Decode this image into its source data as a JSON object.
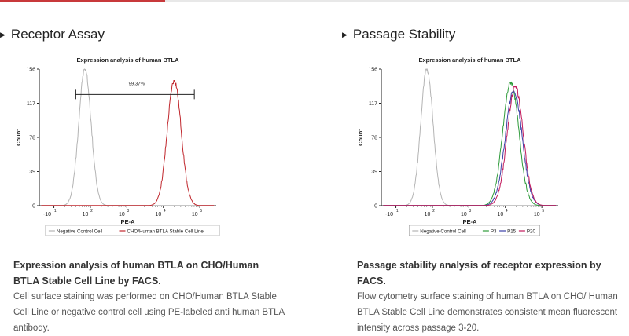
{
  "sections": [
    {
      "heading": "Receptor Assay",
      "description_title": "Expression analysis of human BTLA on CHO/Human BTLA Stable Cell Line by FACS.",
      "description_body": "Cell surface staining was performed on CHO/Human BTLA Stable Cell Line or negative control cell using PE-labeled anti human BTLA antibody."
    },
    {
      "heading": "Passage Stability",
      "description_title": "Passage stability analysis of receptor expression by FACS.",
      "description_body": "Flow cytometry surface staining of human BTLA on CHO/ Human BTLA Stable Cell Line demonstrates consistent mean fluorescent intensity across passage 3-20."
    }
  ],
  "chart_data": [
    {
      "type": "line",
      "title": "Expression analysis of human BTLA",
      "xlabel": "PE-A",
      "ylabel": "Count",
      "xscale": "log",
      "ylim": [
        0,
        156
      ],
      "yticks": [
        0,
        39,
        78,
        117,
        156
      ],
      "xticks": [
        {
          "base": "-10",
          "exp": "1"
        },
        {
          "base": "10",
          "exp": "2"
        },
        {
          "base": "10",
          "exp": "3"
        },
        {
          "base": "10",
          "exp": "4"
        },
        {
          "base": "10",
          "exp": "5"
        }
      ],
      "annotation": {
        "label": "99.37%",
        "gate_from_decade": 1.6,
        "gate_to_decade": 4.85,
        "gate_y": 127
      },
      "series": [
        {
          "name": "Negative Control Cell",
          "color": "#b4b4b4",
          "peak_decade": 1.85,
          "peak_count": 156,
          "width": 0.17
        },
        {
          "name": "CHO/Human BTLA Stable Cell Line",
          "color": "#c0272d",
          "peak_decade": 4.3,
          "peak_count": 143,
          "width": 0.19
        }
      ],
      "legend_position": "bottom-center"
    },
    {
      "type": "line",
      "title": "Expression analysis of human BTLA",
      "xlabel": "PE-A",
      "ylabel": "Count",
      "xscale": "log",
      "ylim": [
        0,
        156
      ],
      "yticks": [
        0,
        39,
        78,
        117,
        156
      ],
      "xticks": [
        {
          "base": "-10",
          "exp": "1"
        },
        {
          "base": "10",
          "exp": "2"
        },
        {
          "base": "10",
          "exp": "3"
        },
        {
          "base": "10",
          "exp": "4"
        },
        {
          "base": "10",
          "exp": "5"
        }
      ],
      "series": [
        {
          "name": "Negative Control Cell",
          "color": "#b4b4b4",
          "peak_decade": 1.85,
          "peak_count": 156,
          "width": 0.17
        },
        {
          "name": "P3",
          "color": "#2e9b3a",
          "peak_decade": 4.15,
          "peak_count": 141,
          "width": 0.22
        },
        {
          "name": "P15",
          "color": "#3b3fa6",
          "peak_decade": 4.23,
          "peak_count": 131,
          "width": 0.23
        },
        {
          "name": "P20",
          "color": "#c2185b",
          "peak_decade": 4.27,
          "peak_count": 136,
          "width": 0.22
        }
      ],
      "legend_position": "bottom-center"
    }
  ]
}
